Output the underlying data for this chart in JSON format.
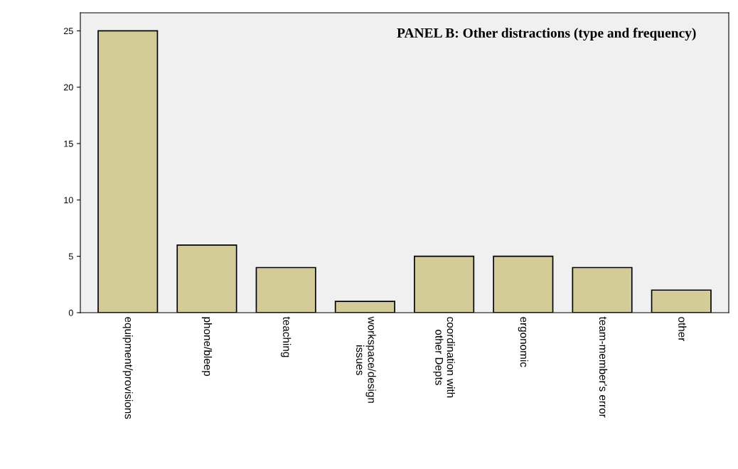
{
  "chart_data": {
    "type": "bar",
    "title": "PANEL B: Other distractions (type and frequency)",
    "categories": [
      "equipment/provisions",
      "phone/bleep",
      "teaching",
      "workspace/design\nissues",
      "coordination with\nother Depts",
      "ergonomic",
      "team-member's error",
      "other"
    ],
    "values": [
      25,
      6,
      4,
      1,
      5,
      5,
      4,
      2
    ],
    "color": "#d3cc98",
    "ylim": [
      0,
      26.6
    ],
    "yticks": [
      0,
      5,
      10,
      15,
      20,
      25
    ],
    "grid": false,
    "legend": false
  }
}
